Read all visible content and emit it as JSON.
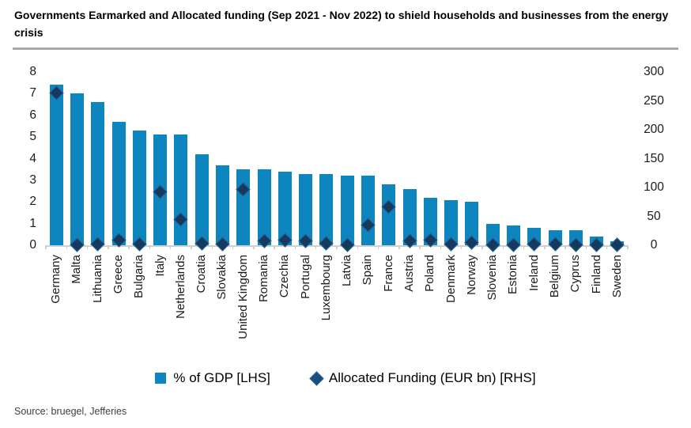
{
  "title": "Governments Earmarked and Allocated funding (Sep 2021 - Nov 2022) to shield households and businesses from the energy crisis",
  "source": "Source: bruegel, Jefferies",
  "legend": [
    {
      "label": "% of GDP [LHS]",
      "marker": "square-icon",
      "color": "#0D85BF"
    },
    {
      "label": "Allocated Funding (EUR bn) [RHS]",
      "marker": "diamond-icon",
      "color": "#1B4E79"
    }
  ],
  "colors": {
    "bar": "#0D85BF",
    "diamond_fill": "#16395C",
    "diamond_border": "#2368A2",
    "axis": "#d0d0d0",
    "divider": "#a8a8a8"
  },
  "chart_data": {
    "type": "bar",
    "categories": [
      "Germany",
      "Malta",
      "Lithuania",
      "Greece",
      "Bulgaria",
      "Italy",
      "Netherlands",
      "Croatia",
      "Slovakia",
      "United Kingdom",
      "Romania",
      "Czechia",
      "Portugal",
      "Luxembourg",
      "Latvia",
      "Spain",
      "France",
      "Austria",
      "Poland",
      "Denmark",
      "Norway",
      "Slovenia",
      "Estonia",
      "Ireland",
      "Belgium",
      "Cyprus",
      "Finland",
      "Sweden"
    ],
    "series": [
      {
        "name": "% of GDP [LHS]",
        "type": "bar",
        "axis": "left",
        "values": [
          7.4,
          7.0,
          6.6,
          5.7,
          5.3,
          5.1,
          5.1,
          4.2,
          3.7,
          3.5,
          3.5,
          3.4,
          3.3,
          3.3,
          3.2,
          3.2,
          2.8,
          2.6,
          2.2,
          2.1,
          2.0,
          1.0,
          0.9,
          0.8,
          0.7,
          0.7,
          0.4,
          0.2
        ]
      },
      {
        "name": "Allocated Funding (EUR bn) [RHS]",
        "type": "scatter",
        "marker": "diamond",
        "axis": "right",
        "values": [
          264,
          0.2,
          2,
          9,
          1.5,
          92,
          45,
          4,
          1.5,
          97,
          7,
          9,
          7,
          3,
          1,
          35,
          66,
          7,
          9,
          2.5,
          4.5,
          1,
          0.5,
          2.5,
          2.5,
          0.5,
          1,
          0.5
        ]
      }
    ],
    "left_axis": {
      "min": 0,
      "max": 8,
      "ticks": [
        0,
        1,
        2,
        3,
        4,
        5,
        6,
        7,
        8
      ]
    },
    "right_axis": {
      "min": 0,
      "max": 300,
      "ticks": [
        0,
        50,
        100,
        150,
        200,
        250,
        300
      ]
    },
    "grid": false,
    "legend_position": "bottom",
    "title": "Governments Earmarked and Allocated funding (Sep 2021 - Nov 2022) to shield households and businesses from the energy crisis"
  }
}
